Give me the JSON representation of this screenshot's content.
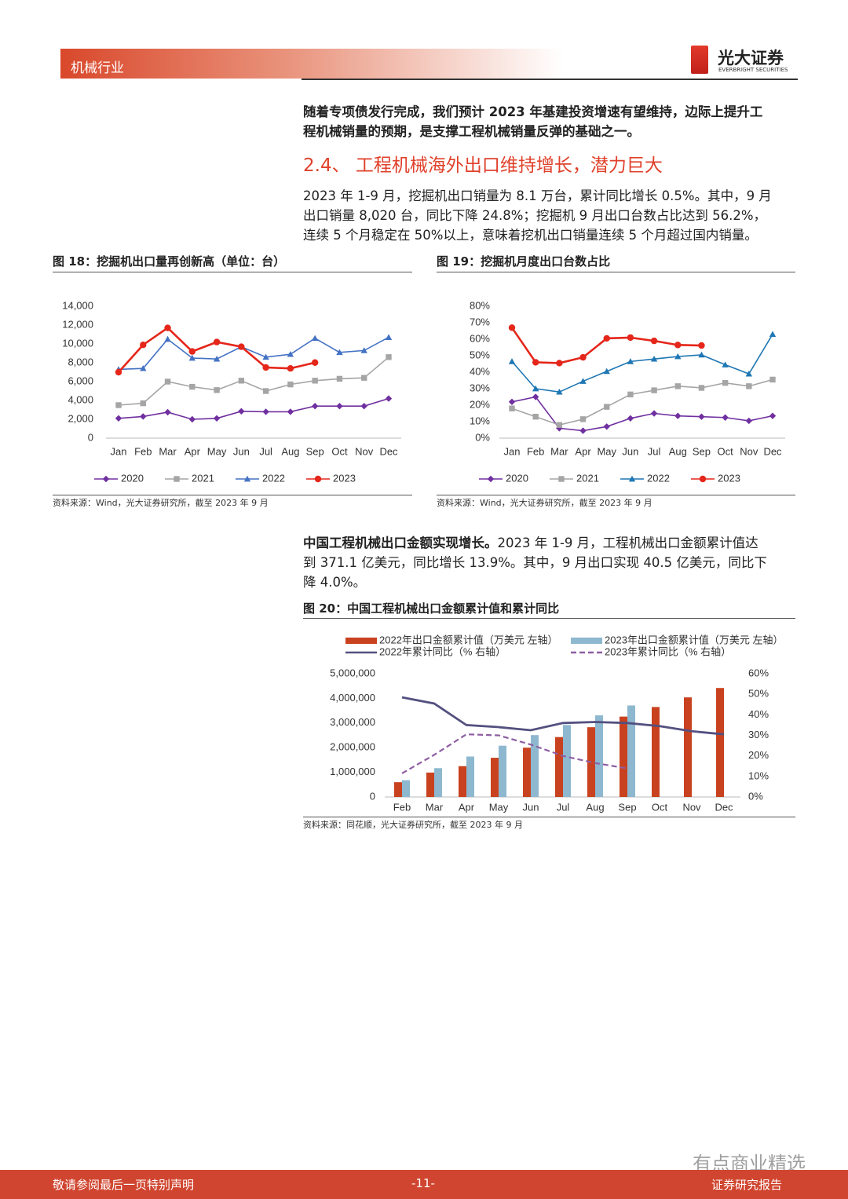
{
  "header": {
    "section": "机械行业",
    "logo_cn": "光大证券",
    "logo_en": "EVERBRIGHT SECURITIES"
  },
  "paragraph_1": [
    "随着专项债发行完成，我们预计 2023 年基建投资增速有望维持，边际上提升工",
    "程机械销量的预期，是支撑工程机械销量反弹的基础之一。"
  ],
  "heading": "2.4、 工程机械海外出口维持增长，潜力巨大",
  "paragraph_2": [
    "2023 年 1-9 月，挖掘机出口销量为 8.1 万台，累计同比增长 0.5%。其中，9 月",
    "出口销量 8,020 台，同比下降 24.8%；挖掘机 9 月出口台数占比达到 56.2%，",
    "连续 5 个月稳定在 50%以上，意味着挖机出口销量连续 5 个月超过国内销量。"
  ],
  "paragraph_3": {
    "lead": "中国工程机械出口金额实现增长。",
    "lines": [
      "2023 年 1-9 月，工程机械出口金额累计值达",
      "到 371.1 亿美元，同比增长 13.9%。其中，9 月出口实现 40.5 亿美元，同比下",
      "降 4.0%。"
    ]
  },
  "chart_data": [
    {
      "type": "line",
      "title": "图 18：挖掘机出口量再创新高（单位：台）",
      "source": "资料来源：Wind，光大证券研究所，截至 2023 年 9 月",
      "categories": [
        "Jan",
        "Feb",
        "Mar",
        "Apr",
        "May",
        "Jun",
        "Jul",
        "Aug",
        "Sep",
        "Oct",
        "Nov",
        "Dec"
      ],
      "ylim": [
        0,
        14000
      ],
      "yticks": [
        0,
        {
          "value": 2000,
          "label": "2,000"
        },
        {
          "value": 4000,
          "label": "4,000"
        },
        {
          "value": 6000,
          "label": "6,000"
        },
        {
          "value": 8000,
          "label": "8,000"
        },
        {
          "value": 10000,
          "label": "10,000"
        },
        {
          "value": 12000,
          "label": "12,000"
        },
        {
          "value": 14000,
          "label": "14,000"
        }
      ],
      "series": [
        {
          "name": "2020",
          "color": "#7030a0",
          "marker": "diamond",
          "values": [
            2100,
            2300,
            2750,
            2000,
            2100,
            2850,
            2800,
            2800,
            3400,
            3400,
            3400,
            4200
          ]
        },
        {
          "name": "2021",
          "color": "#a5a5a5",
          "marker": "square",
          "values": [
            3500,
            3700,
            6000,
            5450,
            5100,
            6100,
            5000,
            5700,
            6100,
            6300,
            6400,
            8600
          ]
        },
        {
          "name": "2022",
          "color": "#4472c4",
          "marker": "triangle",
          "values": [
            7300,
            7400,
            10500,
            8500,
            8400,
            9700,
            8600,
            8900,
            10600,
            9100,
            9300,
            10700
          ]
        },
        {
          "name": "2023",
          "color": "#e5261a",
          "marker": "circle",
          "values": [
            7000,
            9900,
            11700,
            9200,
            10200,
            9700,
            7500,
            7400,
            8020,
            null,
            null,
            null
          ]
        }
      ]
    },
    {
      "type": "line",
      "title": "图 19：挖掘机月度出口台数占比",
      "source": "资料来源：Wind，光大证券研究所，截至 2023 年 9 月",
      "categories": [
        "Jan",
        "Feb",
        "Mar",
        "Apr",
        "May",
        "Jun",
        "Jul",
        "Aug",
        "Sep",
        "Oct",
        "Nov",
        "Dec"
      ],
      "ylim": [
        0,
        80
      ],
      "yticks": [
        {
          "value": 0,
          "label": "0%"
        },
        {
          "value": 10,
          "label": "10%"
        },
        {
          "value": 20,
          "label": "20%"
        },
        {
          "value": 30,
          "label": "30%"
        },
        {
          "value": 40,
          "label": "40%"
        },
        {
          "value": 50,
          "label": "50%"
        },
        {
          "value": 60,
          "label": "60%"
        },
        {
          "value": 70,
          "label": "70%"
        },
        {
          "value": 80,
          "label": "80%"
        }
      ],
      "series": [
        {
          "name": "2020",
          "color": "#7030a0",
          "marker": "diamond",
          "values": [
            22,
            25,
            6,
            4.5,
            7,
            12,
            15,
            13.5,
            13,
            12.5,
            10.5,
            13.5
          ]
        },
        {
          "name": "2021",
          "color": "#a5a5a5",
          "marker": "square",
          "values": [
            18,
            13,
            8,
            11.5,
            19,
            26.5,
            29,
            31.5,
            30.5,
            33.5,
            31.5,
            35.5
          ]
        },
        {
          "name": "2022",
          "color": "#1f77b4",
          "marker": "triangle",
          "values": [
            46.5,
            30,
            28,
            34.5,
            40.5,
            46.5,
            48,
            49.5,
            50.5,
            44.5,
            39,
            63
          ]
        },
        {
          "name": "2023",
          "color": "#e5261a",
          "marker": "circle",
          "values": [
            67,
            46,
            45.5,
            49,
            60.5,
            61,
            59,
            56.5,
            56.2,
            null,
            null,
            null
          ]
        }
      ]
    },
    {
      "type": "combo",
      "title": "图 20：中国工程机械出口金额累计值和累计同比",
      "source": "资料来源：同花顺，光大证券研究所，截至 2023 年 9 月",
      "categories": [
        "Feb",
        "Mar",
        "Apr",
        "May",
        "Jun",
        "Jul",
        "Aug",
        "Sep",
        "Oct",
        "Nov",
        "Dec"
      ],
      "ylim": [
        0,
        5000000
      ],
      "yticks": [
        0,
        {
          "value": 1000000,
          "label": "1,000,000"
        },
        {
          "value": 2000000,
          "label": "2,000,000"
        },
        {
          "value": 3000000,
          "label": "3,000,000"
        },
        {
          "value": 4000000,
          "label": "4,000,000"
        },
        {
          "value": 5000000,
          "label": "5,000,000"
        }
      ],
      "y2lim": [
        0,
        60
      ],
      "y2ticks": [
        {
          "value": 0,
          "label": "0%"
        },
        {
          "value": 10,
          "label": "10%"
        },
        {
          "value": 20,
          "label": "20%"
        },
        {
          "value": 30,
          "label": "30%"
        },
        {
          "value": 40,
          "label": "40%"
        },
        {
          "value": 50,
          "label": "50%"
        },
        {
          "value": 60,
          "label": "60%"
        }
      ],
      "series": [
        {
          "name": "2022年出口金额累计值（万美元 左轴）",
          "type": "bar",
          "color": "#c9421f",
          "values": [
            600000,
            990000,
            1250000,
            1590000,
            2000000,
            2430000,
            2830000,
            3260000,
            3650000,
            4040000,
            4420000
          ]
        },
        {
          "name": "2023年出口金额累计值（万美元 左轴）",
          "type": "bar",
          "color": "#8db8cf",
          "values": [
            680000,
            1170000,
            1640000,
            2080000,
            2510000,
            2920000,
            3310000,
            3711000,
            null,
            null,
            null
          ]
        },
        {
          "name": "2022年累计同比（% 右轴）",
          "type": "line",
          "axis": "y2",
          "color": "#545080",
          "values": [
            48.5,
            45.5,
            35,
            34,
            32.5,
            36,
            36.5,
            36,
            34.5,
            32,
            30.5
          ]
        },
        {
          "name": "2023年累计同比（% 右轴）",
          "type": "line",
          "axis": "y2",
          "dash": true,
          "color": "#8e5ea2",
          "values": [
            11.5,
            20.5,
            30.5,
            30,
            25.5,
            20,
            16.5,
            13.9,
            null,
            null,
            null
          ]
        }
      ]
    }
  ],
  "watermark": "有点商业精选",
  "footer": {
    "left": "敬请参阅最后一页特别声明",
    "page": "-11-",
    "right": "证券研究报告"
  }
}
